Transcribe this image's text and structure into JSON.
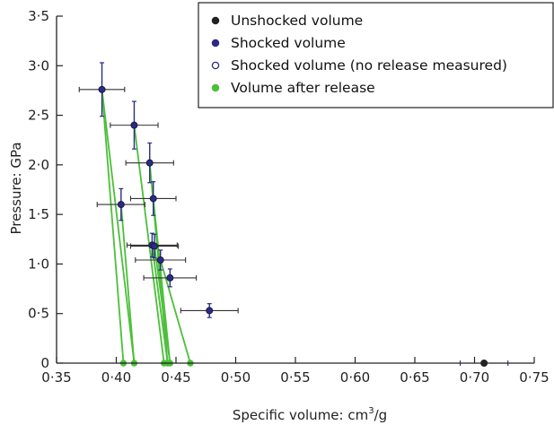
{
  "chart_data": {
    "type": "scatter",
    "xlabel": "Specific volume: cm",
    "xlabel_sup": "3",
    "xlabel_suffix": "/g",
    "ylabel": "Pressure: GPa",
    "xlim": [
      0.35,
      0.75
    ],
    "ylim": [
      0,
      3.5
    ],
    "x_ticks": [
      0.35,
      0.4,
      0.45,
      0.5,
      0.55,
      0.6,
      0.65,
      0.7,
      0.75
    ],
    "x_tick_labels": [
      "0·35",
      "0·40",
      "0·45",
      "0·50",
      "0·55",
      "0·60",
      "0·65",
      "0·70",
      "0·75"
    ],
    "y_ticks": [
      0,
      0.5,
      1.0,
      1.5,
      2.0,
      2.5,
      3.0,
      3.5
    ],
    "y_tick_labels": [
      "0",
      "0·5",
      "1·0",
      "1·5",
      "2·0",
      "2·5",
      "3·0",
      "3·5"
    ],
    "legend_position": "top-right",
    "colors": {
      "unshocked": "#222222",
      "shocked": "#2b2a8a",
      "release": "#4cbf3a",
      "errorbar": "#333333"
    },
    "series": [
      {
        "name": "Unshocked volume",
        "marker": "filled-circle",
        "points": [
          {
            "x": 0.708,
            "y": 0.0,
            "xerr": 0.02,
            "yerr": 0.0
          }
        ]
      },
      {
        "name": "Shocked volume",
        "marker": "filled-circle",
        "points": [
          {
            "x": 0.388,
            "y": 2.76,
            "xerr": 0.019,
            "yerr": 0.27
          },
          {
            "x": 0.415,
            "y": 2.4,
            "xerr": 0.02,
            "yerr": 0.24
          },
          {
            "x": 0.428,
            "y": 2.02,
            "xerr": 0.02,
            "yerr": 0.2
          },
          {
            "x": 0.431,
            "y": 1.66,
            "xerr": 0.019,
            "yerr": 0.17
          },
          {
            "x": 0.404,
            "y": 1.6,
            "xerr": 0.02,
            "yerr": 0.16
          },
          {
            "x": 0.43,
            "y": 1.19,
            "xerr": 0.021,
            "yerr": 0.12
          },
          {
            "x": 0.432,
            "y": 1.18,
            "xerr": 0.02,
            "yerr": 0.12
          },
          {
            "x": 0.437,
            "y": 1.04,
            "xerr": 0.021,
            "yerr": 0.1
          },
          {
            "x": 0.445,
            "y": 0.86,
            "xerr": 0.022,
            "yerr": 0.09
          },
          {
            "x": 0.478,
            "y": 0.53,
            "xerr": 0.024,
            "yerr": 0.07
          }
        ]
      },
      {
        "name": "Shocked volume (no release measured)",
        "marker": "open-circle",
        "points": []
      },
      {
        "name": "Volume after release",
        "marker": "filled-circle",
        "points": [
          {
            "x": 0.406,
            "y": 0.0
          },
          {
            "x": 0.415,
            "y": 0.0
          },
          {
            "x": 0.44,
            "y": 0.0
          },
          {
            "x": 0.443,
            "y": 0.0
          },
          {
            "x": 0.445,
            "y": 0.0
          },
          {
            "x": 0.462,
            "y": 0.0
          }
        ]
      }
    ],
    "release_lines": [
      {
        "from": [
          0.388,
          2.76
        ],
        "to": [
          0.406,
          0.0
        ]
      },
      {
        "from": [
          0.388,
          2.76
        ],
        "to": [
          0.415,
          0.0
        ]
      },
      {
        "from": [
          0.415,
          2.4
        ],
        "to": [
          0.44,
          0.0
        ]
      },
      {
        "from": [
          0.428,
          2.02
        ],
        "to": [
          0.443,
          0.0
        ]
      },
      {
        "from": [
          0.404,
          1.6
        ],
        "to": [
          0.415,
          0.0
        ]
      },
      {
        "from": [
          0.431,
          1.66
        ],
        "to": [
          0.445,
          0.0
        ]
      },
      {
        "from": [
          0.43,
          1.19
        ],
        "to": [
          0.443,
          0.0
        ]
      },
      {
        "from": [
          0.432,
          1.18
        ],
        "to": [
          0.445,
          0.0
        ]
      },
      {
        "from": [
          0.437,
          1.04
        ],
        "to": [
          0.462,
          0.0
        ]
      }
    ]
  }
}
